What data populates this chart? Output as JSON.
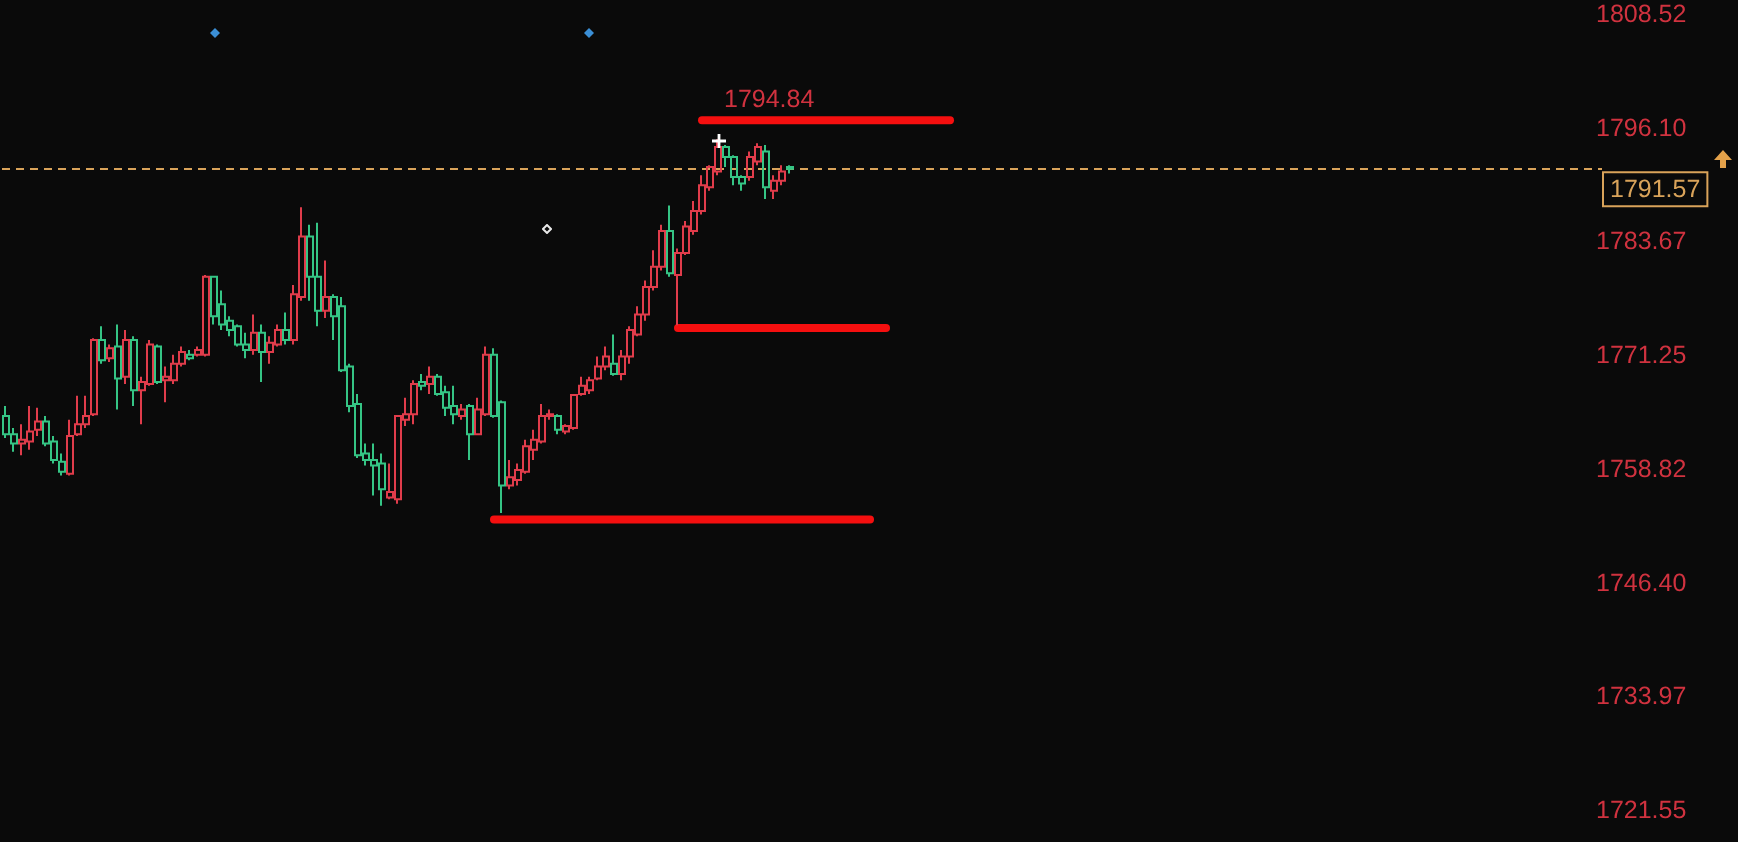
{
  "chart_data": {
    "type": "candlestick",
    "categories": [
      null,
      null,
      null,
      null,
      null,
      null,
      null,
      null,
      null,
      null,
      null,
      null,
      null,
      null,
      null,
      null,
      null,
      null,
      null,
      null,
      null,
      null,
      null,
      null,
      null,
      null,
      null,
      null,
      null,
      null,
      null,
      null,
      null,
      null,
      null,
      null,
      null,
      null,
      null,
      null,
      null,
      null,
      null,
      null,
      null,
      null,
      null,
      null,
      null,
      null,
      null,
      null,
      null,
      null,
      null,
      null,
      null,
      null,
      null,
      null,
      null,
      null,
      null,
      null,
      null,
      null,
      null,
      null,
      null,
      null,
      null,
      null,
      null,
      null,
      null,
      null,
      null,
      null,
      null,
      null,
      null,
      null,
      null,
      null,
      null,
      null,
      null,
      null,
      null,
      null,
      null,
      null,
      null,
      null,
      null,
      null,
      null,
      null,
      null,
      null,
      null,
      null,
      null,
      null,
      null,
      null,
      null,
      null,
      null,
      null,
      null,
      null,
      null,
      null,
      null,
      null,
      null,
      null,
      null,
      null,
      null,
      null,
      null,
      null,
      null,
      null,
      null,
      null,
      null,
      null,
      null,
      null,
      null,
      null,
      null,
      null,
      null,
      null,
      null,
      null,
      null,
      null,
      null,
      null,
      null,
      null,
      null,
      null,
      null,
      null,
      null,
      null,
      null,
      null,
      null,
      null,
      null,
      null,
      null,
      null,
      null,
      null,
      null,
      null,
      null,
      null,
      null,
      null,
      null,
      null,
      null,
      null,
      null,
      null,
      null,
      null,
      null,
      null,
      null,
      null,
      null,
      null,
      null,
      null,
      null,
      null,
      null,
      null,
      null,
      null,
      null,
      null,
      null,
      null,
      null,
      null,
      null,
      null,
      null,
      null
    ],
    "ohlc": [
      [
        1764.6,
        1765.7,
        1762.2,
        1762.6
      ],
      [
        1762.6,
        1763.3,
        1760.7,
        1761.6
      ],
      [
        1761.6,
        1763.7,
        1760.3,
        1762.0
      ],
      [
        1761.8,
        1765.7,
        1760.9,
        1762.9
      ],
      [
        1763.1,
        1765.5,
        1762.4,
        1764.0
      ],
      [
        1764.0,
        1764.6,
        1761.3,
        1761.6
      ],
      [
        1761.8,
        1762.4,
        1759.4,
        1759.8
      ],
      [
        1759.6,
        1760.5,
        1758.1,
        1758.5
      ],
      [
        1758.3,
        1764.2,
        1758.1,
        1762.4
      ],
      [
        1762.6,
        1766.8,
        1762.4,
        1763.7
      ],
      [
        1763.7,
        1766.8,
        1763.3,
        1764.6
      ],
      [
        1764.8,
        1773.1,
        1764.6,
        1772.9
      ],
      [
        1772.9,
        1774.4,
        1770.3,
        1770.7
      ],
      [
        1770.9,
        1772.4,
        1770.5,
        1772.0
      ],
      [
        1772.2,
        1774.6,
        1765.3,
        1768.7
      ],
      [
        1768.9,
        1774.0,
        1768.1,
        1772.9
      ],
      [
        1772.9,
        1773.3,
        1765.7,
        1767.4
      ],
      [
        1767.4,
        1768.9,
        1763.7,
        1768.3
      ],
      [
        1768.1,
        1772.9,
        1767.9,
        1772.4
      ],
      [
        1772.2,
        1772.4,
        1768.1,
        1768.3
      ],
      [
        1768.5,
        1770.0,
        1766.1,
        1768.9
      ],
      [
        1768.5,
        1771.3,
        1768.1,
        1770.3
      ],
      [
        1770.3,
        1772.2,
        1770.0,
        1771.6
      ],
      [
        1771.3,
        1771.8,
        1770.7,
        1770.9
      ],
      [
        1771.3,
        1772.2,
        1771.1,
        1771.8
      ],
      [
        1771.3,
        1780.0,
        1771.1,
        1779.8
      ],
      [
        1779.8,
        1779.9,
        1774.6,
        1775.5
      ],
      [
        1776.8,
        1778.3,
        1774.0,
        1774.6
      ],
      [
        1775.0,
        1775.5,
        1773.3,
        1774.0
      ],
      [
        1774.4,
        1774.6,
        1772.2,
        1772.4
      ],
      [
        1772.4,
        1773.7,
        1770.9,
        1771.8
      ],
      [
        1771.8,
        1775.7,
        1771.3,
        1773.7
      ],
      [
        1773.7,
        1774.6,
        1768.3,
        1771.6
      ],
      [
        1771.6,
        1773.3,
        1770.3,
        1772.6
      ],
      [
        1772.4,
        1774.6,
        1772.2,
        1774.0
      ],
      [
        1774.0,
        1775.9,
        1772.4,
        1772.9
      ],
      [
        1772.9,
        1778.9,
        1772.4,
        1777.9
      ],
      [
        1777.6,
        1787.4,
        1777.2,
        1784.2
      ],
      [
        1784.2,
        1785.5,
        1777.2,
        1779.8
      ],
      [
        1779.8,
        1785.7,
        1774.4,
        1776.1
      ],
      [
        1776.1,
        1781.6,
        1775.3,
        1777.6
      ],
      [
        1777.6,
        1777.9,
        1772.9,
        1775.5
      ],
      [
        1776.6,
        1777.6,
        1769.4,
        1769.6
      ],
      [
        1770.0,
        1770.3,
        1765.0,
        1765.7
      ],
      [
        1765.9,
        1767.0,
        1760.0,
        1760.3
      ],
      [
        1760.5,
        1761.6,
        1759.2,
        1759.8
      ],
      [
        1759.8,
        1761.6,
        1755.9,
        1759.2
      ],
      [
        1759.4,
        1760.5,
        1754.8,
        1756.6
      ],
      [
        1755.7,
        1759.4,
        1755.5,
        1756.3
      ],
      [
        1755.5,
        1764.6,
        1755.0,
        1764.6
      ],
      [
        1764.2,
        1766.6,
        1763.5,
        1764.8
      ],
      [
        1764.8,
        1768.5,
        1763.7,
        1768.1
      ],
      [
        1768.3,
        1769.2,
        1767.4,
        1767.9
      ],
      [
        1768.1,
        1770.0,
        1767.0,
        1768.9
      ],
      [
        1768.9,
        1769.2,
        1766.8,
        1767.0
      ],
      [
        1767.2,
        1767.9,
        1764.6,
        1765.5
      ],
      [
        1765.7,
        1767.9,
        1763.7,
        1764.8
      ],
      [
        1764.6,
        1765.9,
        1764.2,
        1765.3
      ],
      [
        1765.7,
        1765.9,
        1759.8,
        1762.6
      ],
      [
        1762.6,
        1766.6,
        1762.5,
        1765.3
      ],
      [
        1764.8,
        1772.2,
        1764.6,
        1771.3
      ],
      [
        1771.3,
        1772.0,
        1764.4,
        1764.6
      ],
      [
        1766.1,
        1766.3,
        1754.0,
        1757.0
      ],
      [
        1757.0,
        1759.8,
        1756.6,
        1757.9
      ],
      [
        1757.6,
        1759.4,
        1757.0,
        1758.7
      ],
      [
        1758.5,
        1762.0,
        1758.3,
        1761.3
      ],
      [
        1760.9,
        1763.1,
        1759.8,
        1762.0
      ],
      [
        1761.8,
        1765.9,
        1761.6,
        1764.6
      ],
      [
        1764.6,
        1765.3,
        1764.2,
        1764.8
      ],
      [
        1764.6,
        1764.8,
        1762.6,
        1763.1
      ],
      [
        1762.9,
        1763.7,
        1762.6,
        1763.5
      ],
      [
        1763.3,
        1767.0,
        1763.1,
        1766.9
      ],
      [
        1767.0,
        1768.9,
        1766.8,
        1767.9
      ],
      [
        1767.4,
        1768.9,
        1767.0,
        1768.5
      ],
      [
        1768.7,
        1771.1,
        1768.5,
        1770.0
      ],
      [
        1770.0,
        1772.2,
        1769.6,
        1771.1
      ],
      [
        1770.3,
        1773.5,
        1769.0,
        1769.2
      ],
      [
        1769.2,
        1771.8,
        1768.5,
        1771.1
      ],
      [
        1771.1,
        1774.4,
        1770.3,
        1774.0
      ],
      [
        1773.5,
        1776.6,
        1773.3,
        1775.7
      ],
      [
        1775.7,
        1779.4,
        1775.0,
        1778.7
      ],
      [
        1778.7,
        1782.7,
        1778.3,
        1780.9
      ],
      [
        1780.9,
        1785.5,
        1780.5,
        1784.8
      ],
      [
        1784.8,
        1787.6,
        1779.8,
        1780.2
      ],
      [
        1780.0,
        1782.9,
        1774.5,
        1782.4
      ],
      [
        1782.4,
        1785.9,
        1782.2,
        1785.3
      ],
      [
        1784.8,
        1788.1,
        1784.4,
        1787.0
      ],
      [
        1787.0,
        1790.9,
        1786.6,
        1789.8
      ],
      [
        1789.6,
        1792.0,
        1789.2,
        1791.8
      ],
      [
        1791.3,
        1794.84,
        1790.9,
        1794.0
      ],
      [
        1794.0,
        1794.2,
        1791.8,
        1792.9
      ],
      [
        1792.9,
        1793.1,
        1789.8,
        1790.7
      ],
      [
        1790.7,
        1790.9,
        1789.2,
        1790.0
      ],
      [
        1790.7,
        1793.5,
        1790.3,
        1792.9
      ],
      [
        1792.4,
        1794.4,
        1792.0,
        1794.0
      ],
      [
        1793.5,
        1794.2,
        1788.3,
        1789.6
      ],
      [
        1789.2,
        1790.9,
        1788.3,
        1790.3
      ],
      [
        1790.3,
        1792.0,
        1789.8,
        1791.3
      ],
      [
        1791.8,
        1792.0,
        1791.1,
        1791.6
      ],
      null,
      null,
      null,
      null,
      null,
      null,
      null,
      null,
      null,
      null,
      null,
      null,
      null,
      null,
      null,
      null,
      null,
      null,
      null,
      null,
      null,
      null,
      null,
      null,
      null,
      null,
      null,
      null,
      null,
      null,
      null,
      null,
      null,
      null,
      null,
      null,
      null,
      null,
      null,
      null,
      null,
      null,
      null,
      null,
      null,
      null,
      null,
      null,
      null,
      null,
      null,
      null,
      null,
      null,
      null,
      null,
      null,
      null,
      null,
      null,
      null,
      null,
      null,
      null,
      null,
      null,
      null,
      null,
      null,
      null,
      null,
      null,
      null,
      null,
      null,
      null,
      null,
      null,
      null,
      null,
      null,
      null,
      null,
      null,
      null,
      null,
      null,
      null,
      null,
      null,
      null,
      null,
      null,
      null,
      null,
      null,
      null,
      null,
      null,
      null,
      null
    ],
    "colors": [
      "#35c585",
      "#35c585",
      "#e03c4b",
      "#e03c4b",
      "#e03c4b",
      "#35c585",
      "#35c585",
      "#35c585",
      "#e03c4b",
      "#e03c4b",
      "#e03c4b",
      "#e03c4b",
      "#35c585",
      "#e03c4b",
      "#35c585",
      "#e03c4b",
      "#35c585",
      "#e03c4b",
      "#e03c4b",
      "#35c585",
      "#e03c4b",
      "#e03c4b",
      "#e03c4b",
      "#35c585",
      "#e03c4b",
      "#e03c4b",
      "#35c585",
      "#35c585",
      "#35c585",
      "#35c585",
      "#35c585",
      "#e03c4b",
      "#35c585",
      "#e03c4b",
      "#e03c4b",
      "#35c585",
      "#e03c4b",
      "#e03c4b",
      "#35c585",
      "#35c585",
      "#e03c4b",
      "#35c585",
      "#35c585",
      "#35c585",
      "#35c585",
      "#35c585",
      "#35c585",
      "#35c585",
      "#e03c4b",
      "#e03c4b",
      "#e03c4b",
      "#e03c4b",
      "#35c585",
      "#e03c4b",
      "#35c585",
      "#35c585",
      "#35c585",
      "#e03c4b",
      "#35c585",
      "#e03c4b",
      "#e03c4b",
      "#35c585",
      "#35c585",
      "#e03c4b",
      "#e03c4b",
      "#e03c4b",
      "#e03c4b",
      "#e03c4b",
      "#e03c4b",
      "#35c585",
      "#e03c4b",
      "#e03c4b",
      "#e03c4b",
      "#e03c4b",
      "#e03c4b",
      "#e03c4b",
      "#35c585",
      "#e03c4b",
      "#e03c4b",
      "#e03c4b",
      "#e03c4b",
      "#e03c4b",
      "#e03c4b",
      "#35c585",
      "#e03c4b",
      "#e03c4b",
      "#e03c4b",
      "#e03c4b",
      "#e03c4b",
      "#e03c4b",
      "#35c585",
      "#35c585",
      "#35c585",
      "#e03c4b",
      "#e03c4b",
      "#35c585",
      "#e03c4b",
      "#e03c4b",
      "#35c585",
      null,
      null,
      null,
      null,
      null,
      null,
      null,
      null,
      null,
      null,
      null,
      null,
      null,
      null,
      null,
      null,
      null,
      null,
      null,
      null,
      null,
      null,
      null,
      null,
      null,
      null,
      null,
      null,
      null,
      null,
      null,
      null,
      null,
      null,
      null,
      null,
      null,
      null,
      null,
      null,
      null,
      null,
      null,
      null,
      null,
      null,
      null,
      null,
      null,
      null,
      null,
      null,
      null,
      null,
      null,
      null,
      null,
      null,
      null,
      null,
      null,
      null,
      null,
      null,
      null,
      null,
      null,
      null,
      null,
      null,
      null,
      null,
      null,
      null,
      null,
      null,
      null,
      null,
      null,
      null,
      null,
      null,
      null,
      null,
      null,
      null,
      null,
      null,
      null,
      null,
      null,
      null,
      null,
      null,
      null,
      null,
      null,
      null,
      null,
      null,
      null
    ],
    "series": [
      {
        "type": "line",
        "color": "#f50f0f",
        "values": [
          null,
          null,
          null,
          null,
          null,
          null,
          null,
          null,
          null,
          null,
          null,
          null,
          null,
          null,
          null,
          null,
          null,
          null,
          null,
          null,
          null,
          null,
          null,
          null,
          null,
          null,
          null,
          null,
          null,
          null,
          null,
          null,
          null,
          null,
          null,
          null,
          null,
          null,
          null,
          null,
          null,
          null,
          null,
          null,
          null,
          null,
          null,
          null,
          null,
          null,
          null,
          null,
          null,
          null,
          null,
          null,
          null,
          null,
          null,
          null,
          null,
          null,
          null,
          null,
          null,
          null,
          null,
          null,
          null,
          null,
          null,
          null,
          null,
          null,
          null,
          null,
          null,
          null,
          null,
          null,
          null,
          null,
          null,
          null,
          null,
          null,
          null,
          1796.9,
          1796.9,
          1796.9,
          1796.9,
          1796.9,
          1796.9,
          1796.9,
          1796.9,
          1796.9,
          1796.9,
          1796.9,
          1796.9,
          1796.9,
          1796.9,
          1796.9,
          1796.9,
          1796.9,
          1796.9,
          1796.9,
          1796.9,
          1796.9,
          1796.9,
          1796.9,
          1796.9,
          1796.9,
          1796.9,
          1796.9,
          1796.9,
          1796.9,
          1796.9,
          1796.9,
          1796.9,
          null,
          null,
          null,
          null,
          null,
          null,
          null,
          null,
          null,
          null,
          null,
          null,
          null,
          null,
          null,
          null,
          null,
          null,
          null,
          null,
          null,
          null,
          null,
          null,
          null,
          null,
          null,
          null,
          null,
          null,
          null,
          null,
          null,
          null,
          null,
          null,
          null,
          null,
          null,
          null,
          null,
          null,
          null,
          null,
          null,
          null,
          null,
          null,
          null,
          null,
          null,
          null,
          null,
          null,
          null,
          null,
          null,
          null,
          null,
          null,
          null,
          null,
          null,
          null,
          null,
          null,
          null,
          null,
          null,
          null,
          null,
          null,
          null,
          null,
          null,
          null,
          null,
          null,
          null,
          null,
          null
        ]
      },
      {
        "type": "line",
        "color": "#f50f0f",
        "values": [
          null,
          null,
          null,
          null,
          null,
          null,
          null,
          null,
          null,
          null,
          null,
          null,
          null,
          null,
          null,
          null,
          null,
          null,
          null,
          null,
          null,
          null,
          null,
          null,
          null,
          null,
          null,
          null,
          null,
          null,
          null,
          null,
          null,
          null,
          null,
          null,
          null,
          null,
          null,
          null,
          null,
          null,
          null,
          null,
          null,
          null,
          null,
          null,
          null,
          null,
          null,
          null,
          null,
          null,
          null,
          null,
          null,
          null,
          null,
          null,
          null,
          null,
          null,
          null,
          null,
          null,
          null,
          null,
          null,
          null,
          null,
          null,
          null,
          null,
          null,
          null,
          null,
          null,
          null,
          null,
          null,
          null,
          null,
          null,
          1774.2,
          1774.2,
          1774.2,
          1774.2,
          1774.2,
          1774.2,
          1774.2,
          1774.2,
          1774.2,
          1774.2,
          1774.2,
          1774.2,
          1774.2,
          1774.2,
          1774.2,
          1774.2,
          1774.2,
          1774.2,
          1774.2,
          1774.2,
          1774.2,
          1774.2,
          1774.2,
          1774.2,
          1774.2,
          1774.2,
          1774.2,
          null,
          null,
          null,
          null,
          null,
          null,
          null,
          null,
          null,
          null,
          null,
          null,
          null,
          null,
          null,
          null,
          null,
          null,
          null,
          null,
          null,
          null,
          null,
          null,
          null,
          null,
          null,
          null,
          null,
          null,
          null,
          null,
          null,
          null,
          null,
          null,
          null,
          null,
          null,
          null,
          null,
          null,
          null,
          null,
          null,
          null,
          null,
          null,
          null,
          null,
          null,
          null,
          null,
          null,
          null,
          null,
          null,
          null,
          null,
          null,
          null,
          null,
          null,
          null,
          null,
          null,
          null,
          null,
          null,
          null,
          null,
          null,
          null,
          null,
          null,
          null,
          null,
          null,
          null,
          null,
          null,
          null,
          null,
          null,
          null,
          null,
          null,
          null,
          null
        ]
      },
      {
        "type": "line",
        "color": "#f50f0f",
        "values": [
          null,
          null,
          null,
          null,
          null,
          null,
          null,
          null,
          null,
          null,
          null,
          null,
          null,
          null,
          null,
          null,
          null,
          null,
          null,
          null,
          null,
          null,
          null,
          null,
          null,
          null,
          null,
          null,
          null,
          null,
          null,
          null,
          null,
          null,
          null,
          null,
          null,
          null,
          null,
          null,
          null,
          null,
          null,
          null,
          null,
          null,
          null,
          null,
          null,
          null,
          null,
          null,
          null,
          null,
          null,
          null,
          null,
          null,
          null,
          null,
          null,
          1753.3,
          1753.3,
          1753.3,
          1753.3,
          1753.3,
          1753.3,
          1753.3,
          1753.3,
          1753.3,
          1753.3,
          1753.3,
          1753.3,
          1753.3,
          1753.3,
          1753.3,
          1753.3,
          1753.3,
          1753.3,
          1753.3,
          1753.3,
          1753.3,
          1753.3,
          1753.3,
          1753.3,
          1753.3,
          1753.3,
          1753.3,
          1753.3,
          1753.3,
          1753.3,
          1753.3,
          1753.3,
          1753.3,
          1753.3,
          1753.3,
          1753.3,
          1753.3,
          1753.3,
          1753.3,
          1753.3,
          1753.3,
          1753.3,
          1753.3,
          1753.3,
          1753.3,
          1753.3,
          1753.3,
          1753.3,
          null,
          null,
          null,
          null,
          null,
          null,
          null,
          null,
          null,
          null,
          null,
          null,
          null,
          null,
          null,
          null,
          null,
          null,
          null,
          null,
          null,
          null,
          null,
          null,
          null,
          null,
          null,
          null,
          null,
          null,
          null,
          null,
          null,
          null,
          null,
          null,
          null,
          null,
          null,
          null,
          null,
          null,
          null,
          null,
          null,
          null,
          null,
          null,
          null,
          null,
          null,
          null,
          null,
          null,
          null,
          null,
          null,
          null,
          null,
          null,
          null,
          null,
          null,
          null,
          null,
          null,
          null,
          null,
          null,
          null,
          null,
          null,
          null,
          null,
          null,
          null,
          null,
          null,
          null,
          null,
          null,
          null,
          null,
          null,
          null,
          null,
          null,
          null,
          null,
          null,
          null
        ]
      }
    ],
    "ylim": [
      1721.55,
      1808.52
    ],
    "yticks": [
      1721.55,
      1733.97,
      {
        "value": 1746.4,
        "label": "1746.40"
      },
      1758.82,
      1771.25,
      1783.67,
      {
        "value": 1796.1,
        "label": "1796.10"
      },
      1808.52
    ],
    "ref_lines": [
      {
        "axis": "y",
        "value": 1791.57,
        "label": "1791.57",
        "color": "#d9a35a",
        "line_style": "dashed"
      }
    ],
    "annotations": [
      {
        "text": "1794.84",
        "y": 1794.84
      }
    ],
    "tick_labels": "y"
  }
}
